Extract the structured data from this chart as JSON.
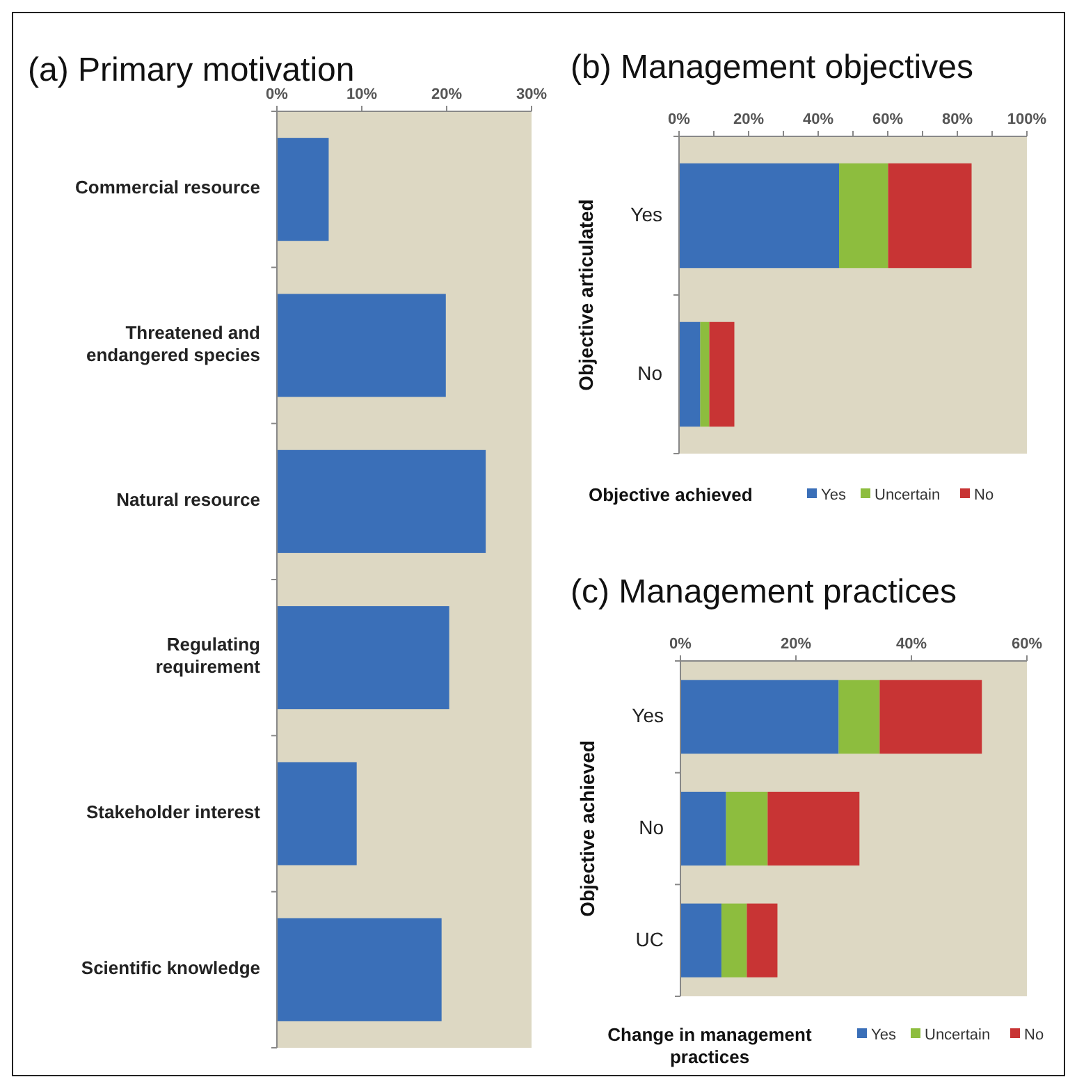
{
  "chart_data": [
    {
      "type": "bar",
      "title": "(a) Primary motivation",
      "orientation": "horizontal",
      "categories": [
        "Commercial resource",
        "Threatened and endangered species",
        "Natural resource",
        "Regulating requirement",
        "Stakeholder interest",
        "Scientific knowledge"
      ],
      "values": [
        6.1,
        19.9,
        24.6,
        20.3,
        9.4,
        19.4
      ],
      "color": "#3a6fb8",
      "xlim": [
        0,
        30
      ],
      "xticks": [
        {
          "value": 0,
          "label": "0%"
        },
        {
          "value": 10,
          "label": "10%"
        },
        {
          "value": 20,
          "label": "20%"
        },
        {
          "value": 30,
          "label": "30%"
        }
      ],
      "grid": false,
      "legend": false
    },
    {
      "type": "bar",
      "title": "(b) Management objectives",
      "orientation": "horizontal",
      "stacked": true,
      "ylabel": "Objective articulated",
      "legend_title": "Objective achieved",
      "legend": "bottom",
      "categories": [
        "Yes",
        "No"
      ],
      "series": [
        {
          "name": "Yes",
          "color": "#3a6fb8",
          "values": [
            46,
            6.1
          ]
        },
        {
          "name": "Uncertain",
          "color": "#8dbd3e",
          "values": [
            14.1,
            2.6
          ]
        },
        {
          "name": "No",
          "color": "#c83434",
          "values": [
            24,
            7.2
          ]
        }
      ],
      "xlim": [
        0,
        100
      ],
      "xticks": [
        {
          "value": 0,
          "label": "0%"
        },
        {
          "value": 10,
          "label": null
        },
        {
          "value": 20,
          "label": "20%"
        },
        {
          "value": 30,
          "label": null
        },
        {
          "value": 40,
          "label": "40%"
        },
        {
          "value": 50,
          "label": null
        },
        {
          "value": 60,
          "label": "60%"
        },
        {
          "value": 70,
          "label": null
        },
        {
          "value": 80,
          "label": "80%"
        },
        {
          "value": 90,
          "label": null
        },
        {
          "value": 100,
          "label": "100%"
        }
      ],
      "grid": false
    },
    {
      "type": "bar",
      "title": "(c) Management practices",
      "orientation": "horizontal",
      "stacked": true,
      "ylabel": "Objective achieved",
      "legend_title": "Change in management practices",
      "legend": "bottom",
      "categories": [
        "Yes",
        "No",
        "UC"
      ],
      "series": [
        {
          "name": "Yes",
          "color": "#3a6fb8",
          "values": [
            27.4,
            7.9,
            7.1
          ]
        },
        {
          "name": "Uncertain",
          "color": "#8dbd3e",
          "values": [
            7.1,
            7.2,
            4.4
          ]
        },
        {
          "name": "No",
          "color": "#c83434",
          "values": [
            17.7,
            15.9,
            5.3
          ]
        }
      ],
      "xlim": [
        0,
        60
      ],
      "xticks": [
        {
          "value": 0,
          "label": "0%"
        },
        {
          "value": 20,
          "label": "20%"
        },
        {
          "value": 40,
          "label": "40%"
        },
        {
          "value": 60,
          "label": "60%"
        }
      ],
      "grid": false
    }
  ]
}
